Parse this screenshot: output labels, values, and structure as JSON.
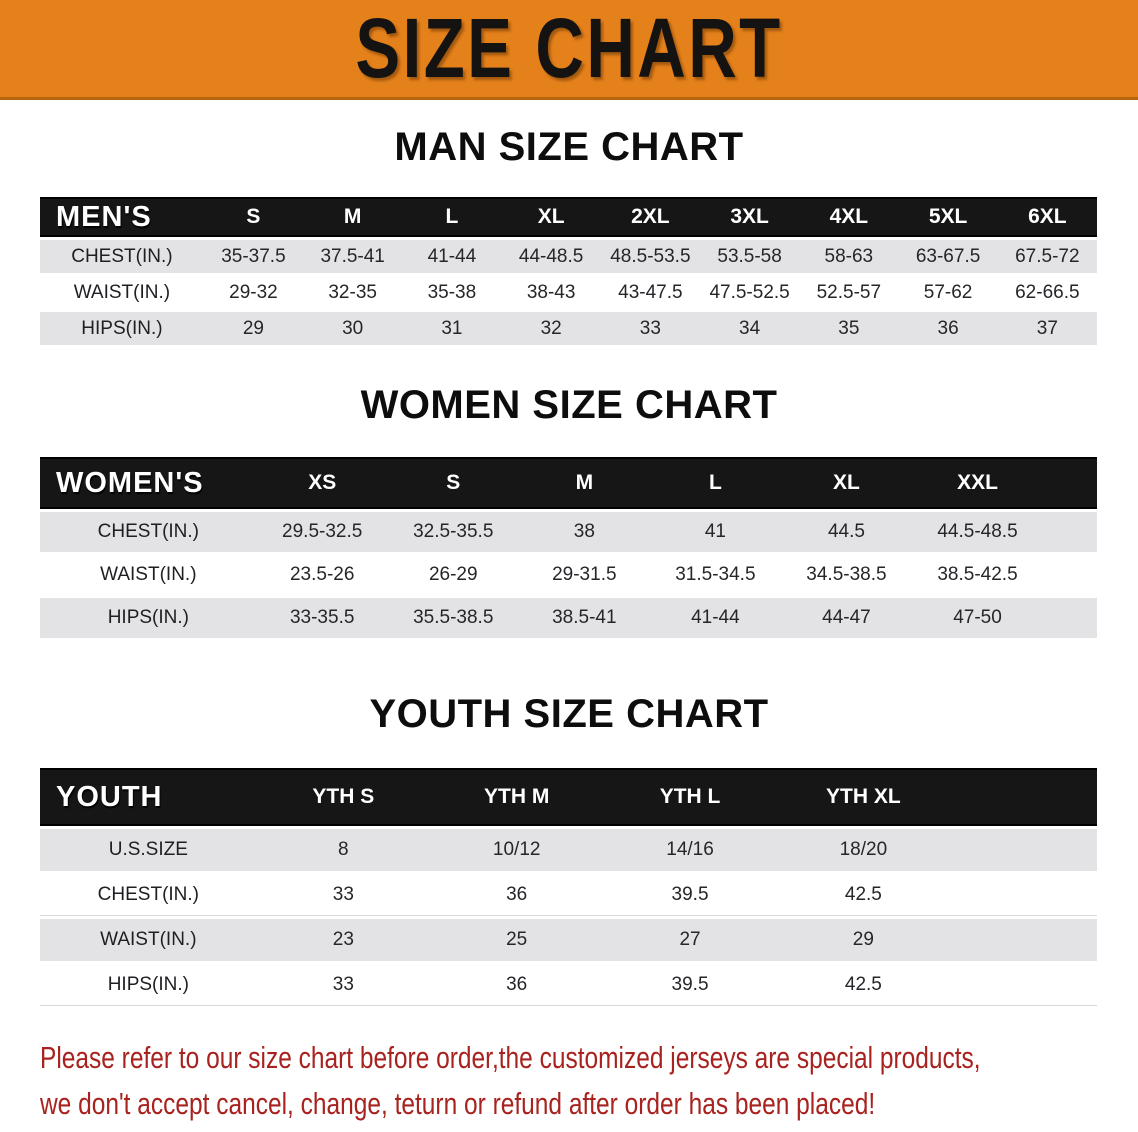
{
  "banner": {
    "title": "SIZE CHART"
  },
  "colors": {
    "banner_bg": "#e5811b",
    "header_bg": "#161616",
    "row_shade": "#e3e3e6",
    "footer_text": "#a8231f"
  },
  "tables": {
    "men": {
      "heading": "MAN SIZE CHART",
      "header": {
        "label": "MEN'S",
        "sizes": [
          "S",
          "M",
          "L",
          "XL",
          "2XL",
          "3XL",
          "4XL",
          "5XL",
          "6XL"
        ]
      },
      "rows": [
        {
          "label": "CHEST(IN.)",
          "shade": true,
          "values": [
            "35-37.5",
            "37.5-41",
            "41-44",
            "44-48.5",
            "48.5-53.5",
            "53.5-58",
            "58-63",
            "63-67.5",
            "67.5-72"
          ]
        },
        {
          "label": "WAIST(IN.)",
          "shade": false,
          "values": [
            "29-32",
            "32-35",
            "35-38",
            "38-43",
            "43-47.5",
            "47.5-52.5",
            "52.5-57",
            "57-62",
            "62-66.5"
          ]
        },
        {
          "label": "HIPS(IN.)",
          "shade": true,
          "values": [
            "29",
            "30",
            "31",
            "32",
            "33",
            "34",
            "35",
            "36",
            "37"
          ]
        }
      ]
    },
    "women": {
      "heading": "WOMEN SIZE CHART",
      "header": {
        "label": "WOMEN'S",
        "sizes": [
          "XS",
          "S",
          "M",
          "L",
          "XL",
          "XXL"
        ]
      },
      "rows": [
        {
          "label": "CHEST(IN.)",
          "shade": true,
          "values": [
            "29.5-32.5",
            "32.5-35.5",
            "38",
            "41",
            "44.5",
            "44.5-48.5"
          ]
        },
        {
          "label": "WAIST(IN.)",
          "shade": false,
          "values": [
            "23.5-26",
            "26-29",
            "29-31.5",
            "31.5-34.5",
            "34.5-38.5",
            "38.5-42.5"
          ]
        },
        {
          "label": "HIPS(IN.)",
          "shade": true,
          "values": [
            "33-35.5",
            "35.5-38.5",
            "38.5-41",
            "41-44",
            "44-47",
            "47-50"
          ]
        }
      ]
    },
    "youth": {
      "heading": "YOUTH SIZE CHART",
      "header": {
        "label": "YOUTH",
        "sizes": [
          "YTH S",
          "YTH M",
          "YTH L",
          "YTH XL"
        ]
      },
      "rows": [
        {
          "label": "U.S.SIZE",
          "shade": true,
          "values": [
            "8",
            "10/12",
            "14/16",
            "18/20"
          ]
        },
        {
          "label": "CHEST(IN.)",
          "shade": false,
          "values": [
            "33",
            "36",
            "39.5",
            "42.5"
          ]
        },
        {
          "label": "WAIST(IN.)",
          "shade": true,
          "values": [
            "23",
            "25",
            "27",
            "29"
          ]
        },
        {
          "label": "HIPS(IN.)",
          "shade": false,
          "values": [
            "33",
            "36",
            "39.5",
            "42.5"
          ]
        }
      ]
    }
  },
  "footer": {
    "line1": "Please refer to our size chart before order,the customized jerseys are special products,",
    "line2": "we don't accept cancel, change, teturn or refund after order has been placed!"
  }
}
